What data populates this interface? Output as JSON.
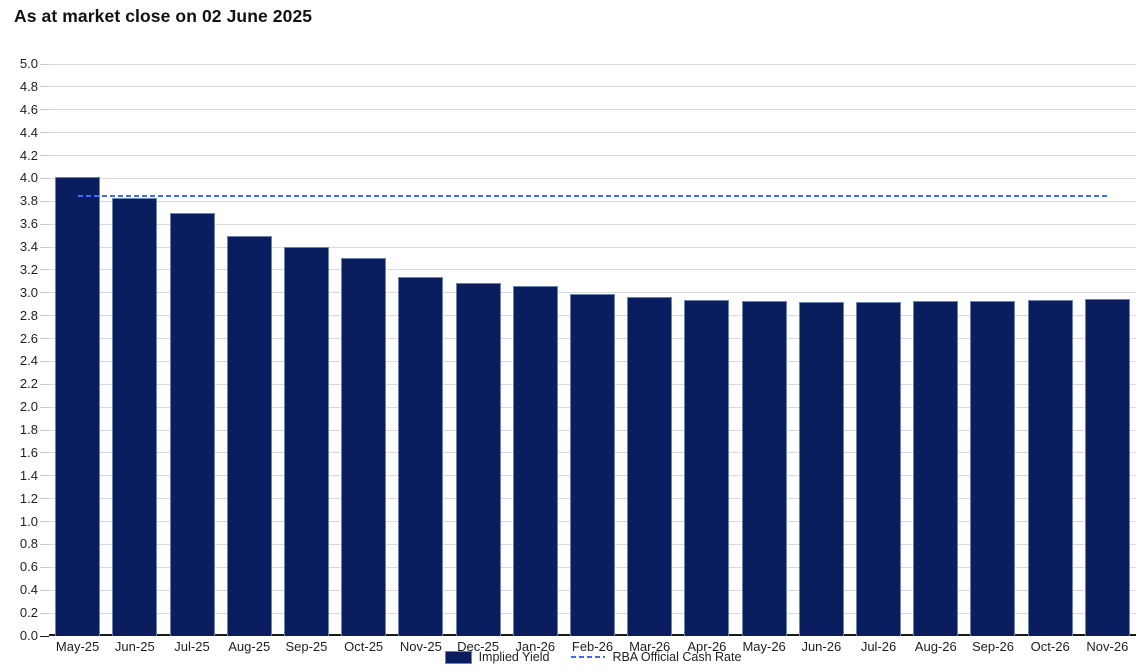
{
  "chart_data": {
    "type": "bar",
    "title": "As at market close on 02 June 2025",
    "categories": [
      "May-25",
      "Jun-25",
      "Jul-25",
      "Aug-25",
      "Sep-25",
      "Oct-25",
      "Nov-25",
      "Dec-25",
      "Jan-26",
      "Feb-26",
      "Mar-26",
      "Apr-26",
      "May-26",
      "Jun-26",
      "Jul-26",
      "Aug-26",
      "Sep-26",
      "Oct-26",
      "Nov-26"
    ],
    "series": [
      {
        "name": "Implied Yield",
        "type": "bar",
        "values": [
          4.01,
          3.83,
          3.7,
          3.5,
          3.4,
          3.3,
          3.14,
          3.09,
          3.06,
          2.99,
          2.96,
          2.94,
          2.93,
          2.92,
          2.92,
          2.93,
          2.93,
          2.94,
          2.95
        ]
      },
      {
        "name": "RBA Official Cash Rate",
        "type": "dashed-line",
        "value": 3.85
      }
    ],
    "xlabel": "",
    "ylabel": "",
    "ylim": [
      0,
      5
    ],
    "ytick_step": 0.2,
    "grid": "horizontal",
    "legend_position": "bottom-center"
  },
  "colors": {
    "bar_fill": "#0a1e5f",
    "bar_border": "#6e84b0",
    "cash_rate_line": "#3d6df2",
    "gridline": "#d9d9d9",
    "tick": "#c9c9c9",
    "axis_baseline": "#1a1a1a",
    "text": "#1f1f1f",
    "title_text": "#121212",
    "background": "#ffffff"
  }
}
